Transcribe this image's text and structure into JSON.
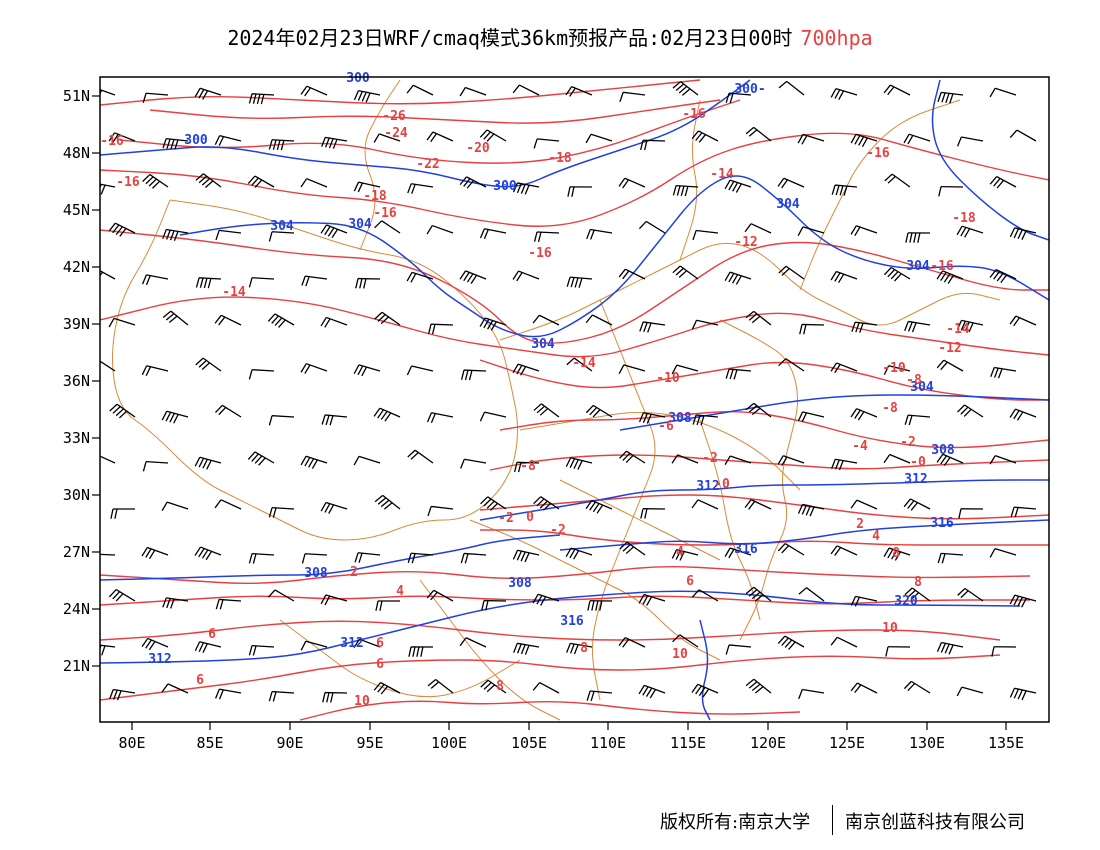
{
  "title": {
    "main": "2024年02月23日WRF/cmaq模式36km预报产品:02月23日00时",
    "level": "700hpa"
  },
  "colors": {
    "temperature": "#e84040",
    "height": "#2040e0",
    "border": "#d88a3a",
    "wind": "#000000"
  },
  "axes": {
    "lon_labels": [
      "80E",
      "85E",
      "90E",
      "95E",
      "100E",
      "105E",
      "110E",
      "115E",
      "120E",
      "125E",
      "130E",
      "135E"
    ],
    "lat_labels": [
      "51N",
      "48N",
      "45N",
      "42N",
      "39N",
      "36N",
      "33N",
      "30N",
      "27N",
      "24N",
      "21N"
    ]
  },
  "height_labels": [
    "300",
    "300",
    "300",
    "304",
    "304",
    "304",
    "304",
    "304",
    "304",
    "308",
    "308",
    "308",
    "308",
    "312",
    "312",
    "312",
    "312",
    "316",
    "316",
    "316",
    "320",
    "300-"
  ],
  "temp_labels": [
    "-26",
    "-24",
    "-22",
    "-20",
    "-18",
    "-18",
    "-16",
    "-16",
    "-16",
    "-16",
    "-16",
    "-16",
    "-14",
    "-14",
    "-14",
    "-14",
    "-12",
    "-12",
    "-10",
    "-10",
    "-8",
    "-8",
    "-8",
    "-6",
    "-4",
    "-2",
    "-2",
    "-2",
    "-0",
    "-2",
    "-0",
    "0",
    "2",
    "2",
    "4",
    "4",
    "4",
    "6",
    "6",
    "6",
    "6",
    "6",
    "8",
    "8",
    "8",
    "8",
    "10",
    "10",
    "10",
    "-18",
    "-16"
  ],
  "footer": {
    "copyright": "版权所有:南京大学",
    "company": "南京创蓝科技有限公司"
  }
}
